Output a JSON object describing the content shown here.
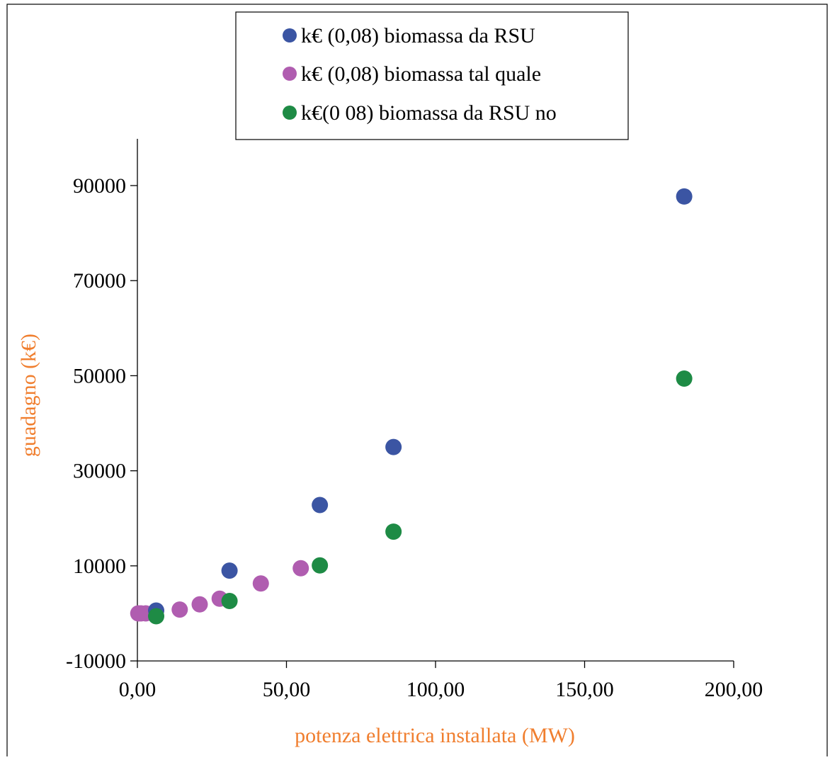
{
  "chart_data": {
    "type": "scatter",
    "title": "",
    "xlabel": "potenza elettrica installata (MW)",
    "ylabel": "guadagno (k€)",
    "xlim": [
      0,
      200
    ],
    "ylim": [
      -10000,
      100000
    ],
    "x_ticks": [
      0,
      50,
      100,
      150,
      200
    ],
    "x_tick_labels": [
      "0,00",
      "50,00",
      "100,00",
      "150,00",
      "200,00"
    ],
    "y_ticks": [
      -10000,
      10000,
      30000,
      50000,
      70000,
      90000
    ],
    "y_tick_labels": [
      "-10000",
      "10000",
      "30000",
      "50000",
      "70000",
      "90000"
    ],
    "grid": false,
    "legend_position": "top",
    "series": [
      {
        "name": "k€ (0,08) biomassa da RSU",
        "color": "#3B55A3",
        "points": [
          {
            "x": 6.3,
            "y": 600
          },
          {
            "x": 30.9,
            "y": 9000
          },
          {
            "x": 61.2,
            "y": 22800
          },
          {
            "x": 85.9,
            "y": 35000
          },
          {
            "x": 183.4,
            "y": 87700
          }
        ]
      },
      {
        "name": "k€ (0,08) biomassa tal quale",
        "color": "#B05DB0",
        "points": [
          {
            "x": 0.3,
            "y": 0
          },
          {
            "x": 1.2,
            "y": 0
          },
          {
            "x": 2.8,
            "y": 0
          },
          {
            "x": 14.2,
            "y": 800
          },
          {
            "x": 20.9,
            "y": 1900
          },
          {
            "x": 27.6,
            "y": 3100
          },
          {
            "x": 41.4,
            "y": 6300
          },
          {
            "x": 54.8,
            "y": 9500
          }
        ]
      },
      {
        "name": "k€(0 08) biomassa da RSU no",
        "color": "#1E8B45",
        "points": [
          {
            "x": 6.3,
            "y": -600
          },
          {
            "x": 30.9,
            "y": 2600
          },
          {
            "x": 61.2,
            "y": 10100
          },
          {
            "x": 85.9,
            "y": 17200
          },
          {
            "x": 183.4,
            "y": 49400
          }
        ]
      }
    ]
  },
  "colors": {
    "axis_label": "#F07E2E",
    "axis_line": "#000000",
    "text": "#000000"
  }
}
